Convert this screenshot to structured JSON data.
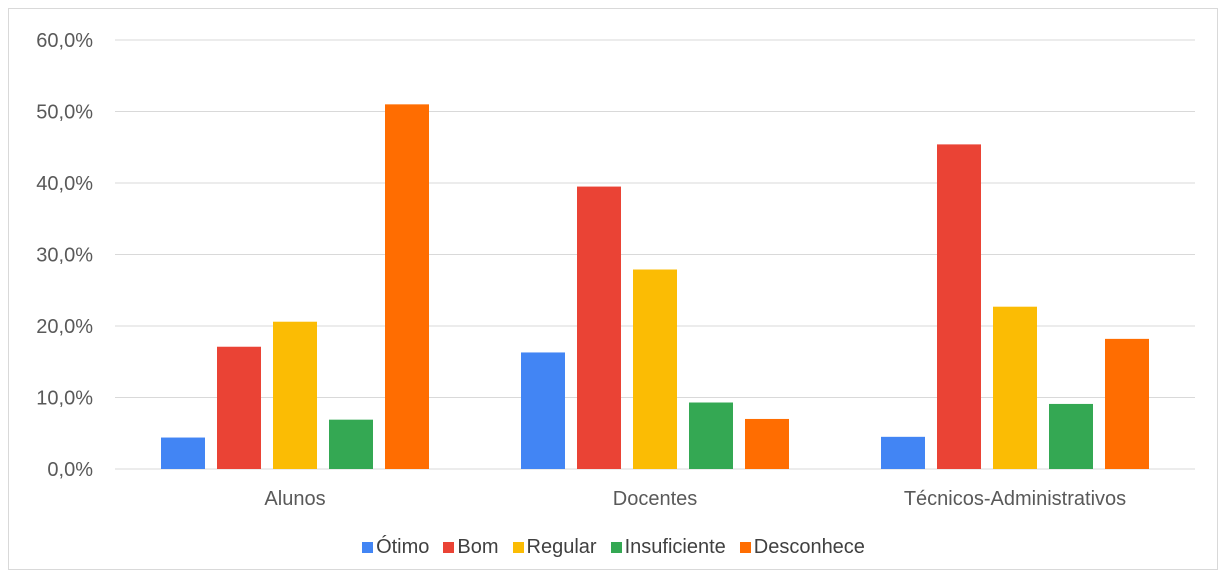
{
  "chart_data": {
    "type": "bar",
    "title": "",
    "xlabel": "",
    "ylabel": "",
    "ylim": [
      0,
      60
    ],
    "ytick_step": 10,
    "ytick_labels": [
      "0,0%",
      "10,0%",
      "20,0%",
      "30,0%",
      "40,0%",
      "50,0%",
      "60,0%"
    ],
    "grid": true,
    "legend_position": "bottom",
    "categories": [
      "Alunos",
      "Docentes",
      "Técnicos-Administrativos"
    ],
    "series": [
      {
        "name": "Ótimo",
        "color": "#4285f4",
        "values": [
          4.4,
          16.3,
          4.5
        ]
      },
      {
        "name": "Bom",
        "color": "#ea4335",
        "values": [
          17.1,
          39.5,
          45.4
        ]
      },
      {
        "name": "Regular",
        "color": "#fbbc04",
        "values": [
          20.6,
          27.9,
          22.7
        ]
      },
      {
        "name": "Insuficiente",
        "color": "#34a853",
        "values": [
          6.9,
          9.3,
          9.1
        ]
      },
      {
        "name": "Desconhece",
        "color": "#ff6d01",
        "values": [
          51.0,
          7.0,
          18.2
        ]
      }
    ]
  }
}
